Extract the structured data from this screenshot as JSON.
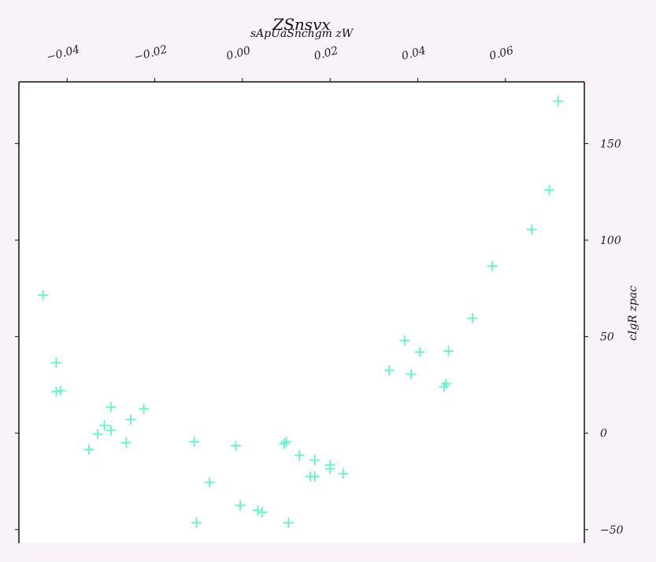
{
  "chart_data": {
    "type": "scatter",
    "title": "ZSnsvx",
    "subtitle": "sApUaSnchgm zW",
    "xlabel": "",
    "ylabel": "cIgR zpac",
    "x_axis_position": "top",
    "y_axis_position": "right",
    "xlim": [
      -0.051,
      0.078
    ],
    "ylim": [
      -57,
      182
    ],
    "xticks": [
      -0.04,
      -0.02,
      0.0,
      0.02,
      0.04,
      0.06
    ],
    "xtick_labels": [
      "−0.04",
      "−0.02",
      "0.00",
      "0.02",
      "0.04",
      "0.06"
    ],
    "yticks": [
      -50,
      0,
      50,
      100,
      150
    ],
    "ytick_labels": [
      "−50",
      "0",
      "50",
      "100",
      "150"
    ],
    "grid": false,
    "marker": "plus",
    "color": "#5ef5c8",
    "series": [
      {
        "points": [
          [
            -0.0455,
            71.5
          ],
          [
            -0.0425,
            36.5
          ],
          [
            -0.0425,
            21.5
          ],
          [
            -0.0415,
            22.0
          ],
          [
            -0.03,
            13.5
          ],
          [
            -0.0315,
            4.0
          ],
          [
            -0.03,
            1.5
          ],
          [
            -0.033,
            -0.5
          ],
          [
            -0.035,
            -8.5
          ],
          [
            -0.0255,
            7.0
          ],
          [
            -0.0225,
            12.5
          ],
          [
            -0.0265,
            -5.0
          ],
          [
            -0.011,
            -4.5
          ],
          [
            -0.0105,
            -46.5
          ],
          [
            -0.0075,
            -25.5
          ],
          [
            -0.0015,
            -6.5
          ],
          [
            -0.0005,
            -37.5
          ],
          [
            0.0035,
            -40.0
          ],
          [
            0.0045,
            -41.0
          ],
          [
            0.0095,
            -5.5
          ],
          [
            0.01,
            -4.5
          ],
          [
            0.0105,
            -46.5
          ],
          [
            0.013,
            -11.5
          ],
          [
            0.0155,
            -22.5
          ],
          [
            0.0165,
            -22.5
          ],
          [
            0.0165,
            -14.0
          ],
          [
            0.02,
            -16.5
          ],
          [
            0.02,
            -18.5
          ],
          [
            0.023,
            -21.0
          ],
          [
            0.0335,
            32.5
          ],
          [
            0.037,
            48.0
          ],
          [
            0.0385,
            30.5
          ],
          [
            0.0405,
            42.0
          ],
          [
            0.046,
            24.0
          ],
          [
            0.0465,
            25.5
          ],
          [
            0.047,
            42.5
          ],
          [
            0.0525,
            59.5
          ],
          [
            0.057,
            86.5
          ],
          [
            0.066,
            105.5
          ],
          [
            0.07,
            126.0
          ],
          [
            0.072,
            172.0
          ]
        ]
      }
    ]
  }
}
